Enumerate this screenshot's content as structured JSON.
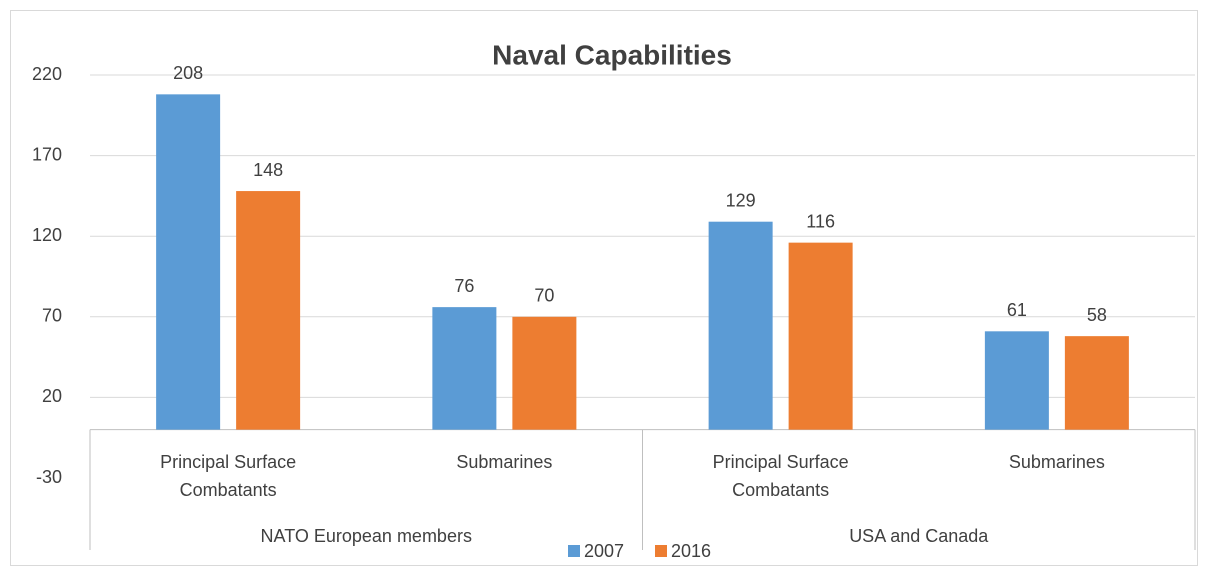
{
  "chart_data": {
    "type": "bar",
    "title": "Naval Capabilities",
    "categories": [
      "Principal Surface Combatants",
      "Submarines",
      "Principal Surface Combatants",
      "Submarines"
    ],
    "groups": [
      "NATO European members",
      "USA and Canada"
    ],
    "series": [
      {
        "name": "2007",
        "color": "#5b9bd5",
        "values": [
          208,
          76,
          129,
          61
        ]
      },
      {
        "name": "2016",
        "color": "#ed7d31",
        "values": [
          148,
          70,
          116,
          58
        ]
      }
    ],
    "ylim": [
      -30,
      220
    ],
    "yticks": [
      -30,
      20,
      70,
      120,
      170,
      220
    ],
    "grid": true,
    "legend": "bottom"
  }
}
